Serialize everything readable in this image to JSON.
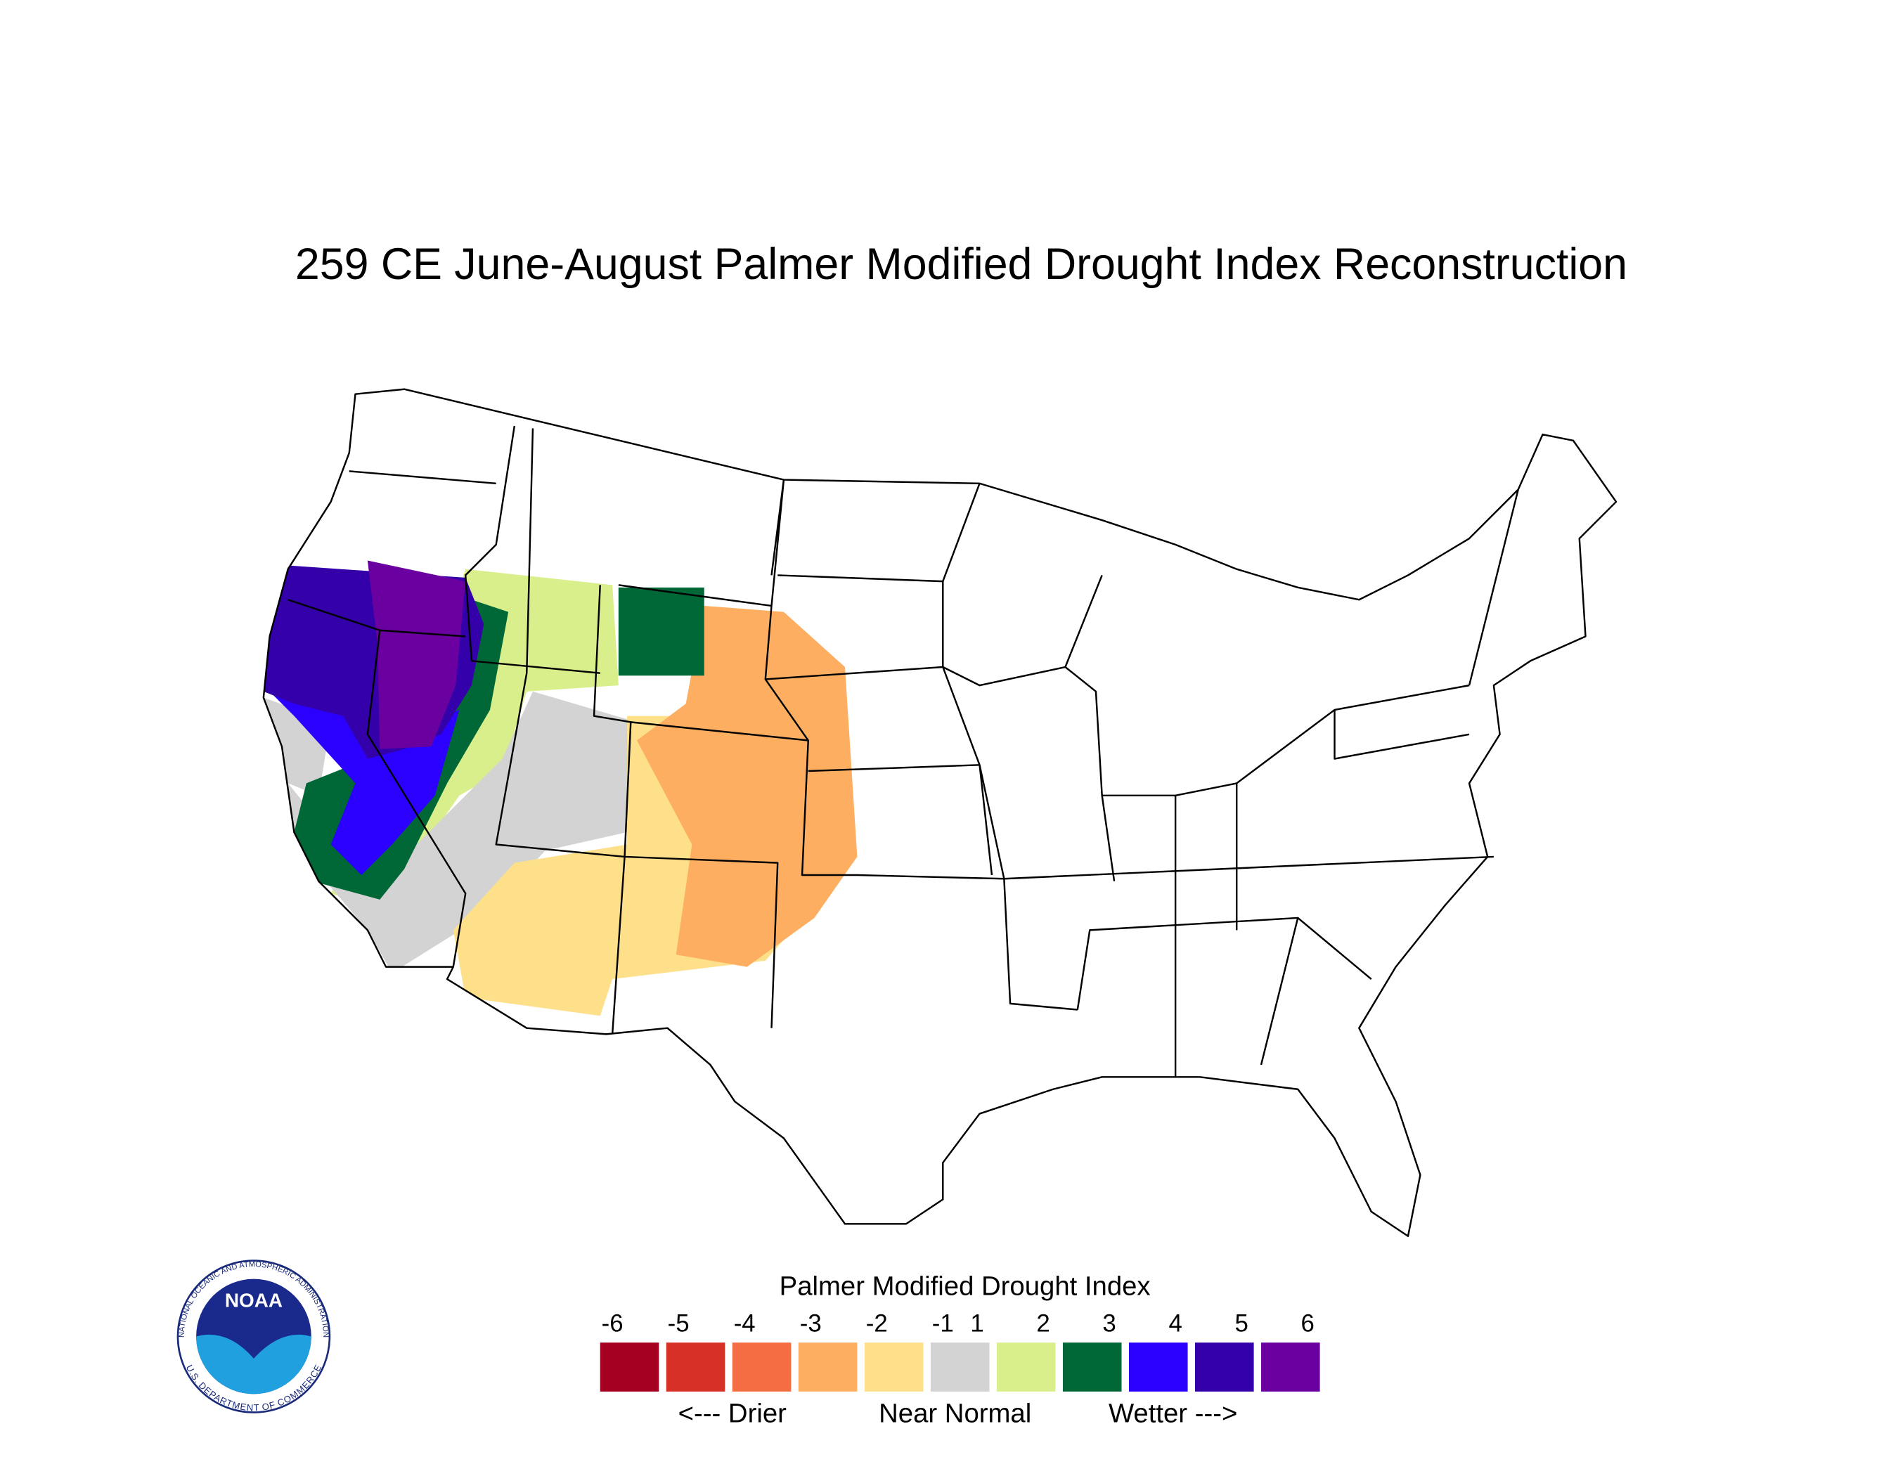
{
  "title": "259 CE  June-August  Palmer Modified Drought Index Reconstruction",
  "legend": {
    "title": "Palmer Modified Drought Index",
    "labels": [
      -6,
      -5,
      -4,
      -3,
      -2,
      -1,
      1,
      2,
      3,
      4,
      5,
      6
    ],
    "colors": [
      "#a50021",
      "#d73027",
      "#f46d43",
      "#fdae61",
      "#fee08b",
      "#d3d3d3",
      "#d9ef8b",
      "#006837",
      "#2b00ff",
      "#3300aa",
      "#6a00a0"
    ],
    "captions": [
      "<--- Drier",
      "Near Normal",
      "Wetter --->"
    ]
  },
  "logo": {
    "name": "NOAA",
    "agency": "NATIONAL OCEANIC AND ATMOSPHERIC ADMINISTRATION",
    "department": "U.S. DEPARTMENT OF COMMERCE"
  }
}
